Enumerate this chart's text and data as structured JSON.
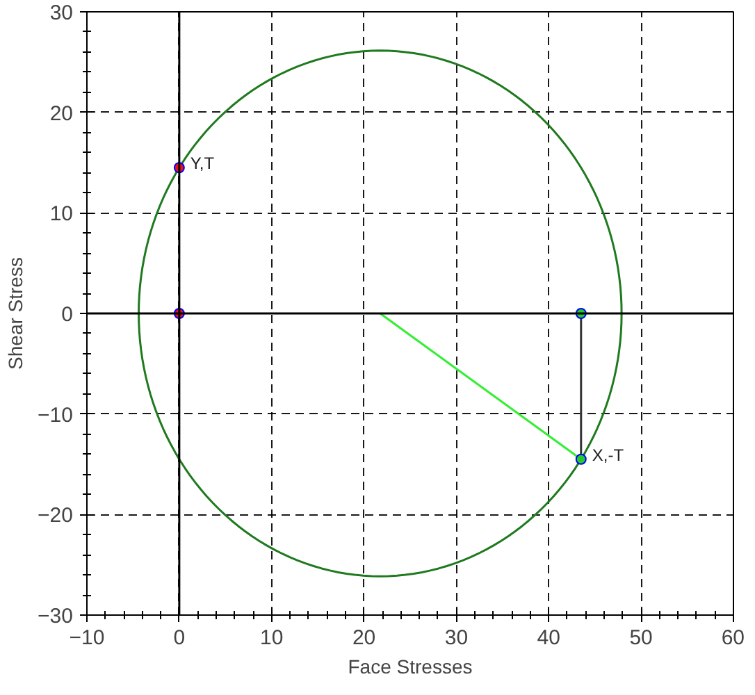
{
  "chart_data": {
    "type": "line",
    "xlabel": "Face Stresses",
    "ylabel": "Shear Stress",
    "xlim": [
      -10,
      60
    ],
    "ylim": [
      -30,
      30
    ],
    "xticks": [
      -10,
      0,
      10,
      20,
      30,
      40,
      50,
      60
    ],
    "yticks": [
      -30,
      -20,
      -10,
      0,
      10,
      20,
      30
    ],
    "grid": true,
    "series": [
      {
        "color": "#33ee33",
        "x": [
          21.75,
          43.5
        ],
        "values": [
          0,
          -14.5
        ]
      },
      {
        "type": "line",
        "color": "#333333",
        "x": [
          43.5,
          43.5
        ],
        "values": [
          0,
          -14.5
        ]
      },
      {
        "type": "scatter",
        "color": "#ee1111",
        "marker": "circle",
        "x": [
          0,
          0
        ],
        "values": [
          14.5,
          0
        ]
      },
      {
        "type": "scatter",
        "color": "#22cc22",
        "marker": "circle",
        "x": [
          43.5,
          43.5
        ],
        "values": [
          0,
          -14.5
        ]
      }
    ],
    "annotations": [
      {
        "text": "Y,T",
        "x": 0,
        "y": 14.5
      },
      {
        "text": "X,-T",
        "x": 43.5,
        "y": -14.5
      }
    ]
  }
}
